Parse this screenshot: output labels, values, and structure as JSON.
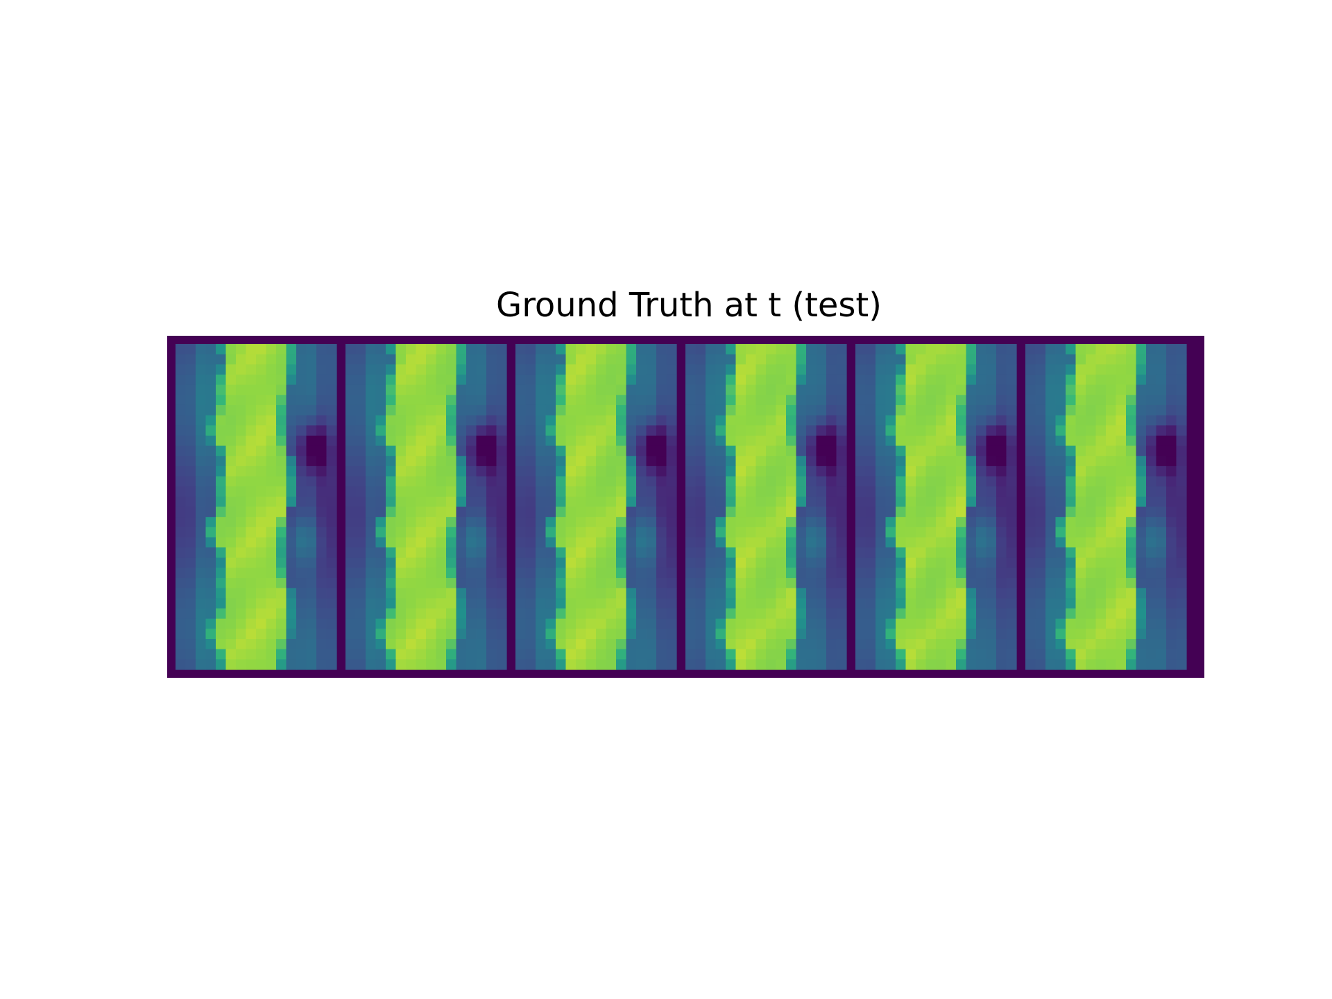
{
  "chart_data": {
    "type": "heatmap",
    "title": "Ground Truth at t (test)",
    "panel_count": 6,
    "colormap": "viridis",
    "axes_visible": false,
    "grid": false,
    "legend": "none",
    "colors": {
      "border": "#440154",
      "background": "#ffffff"
    },
    "field_description_values": {
      "columns": 16,
      "rows": 32,
      "value_range": [
        0,
        1
      ]
    }
  }
}
